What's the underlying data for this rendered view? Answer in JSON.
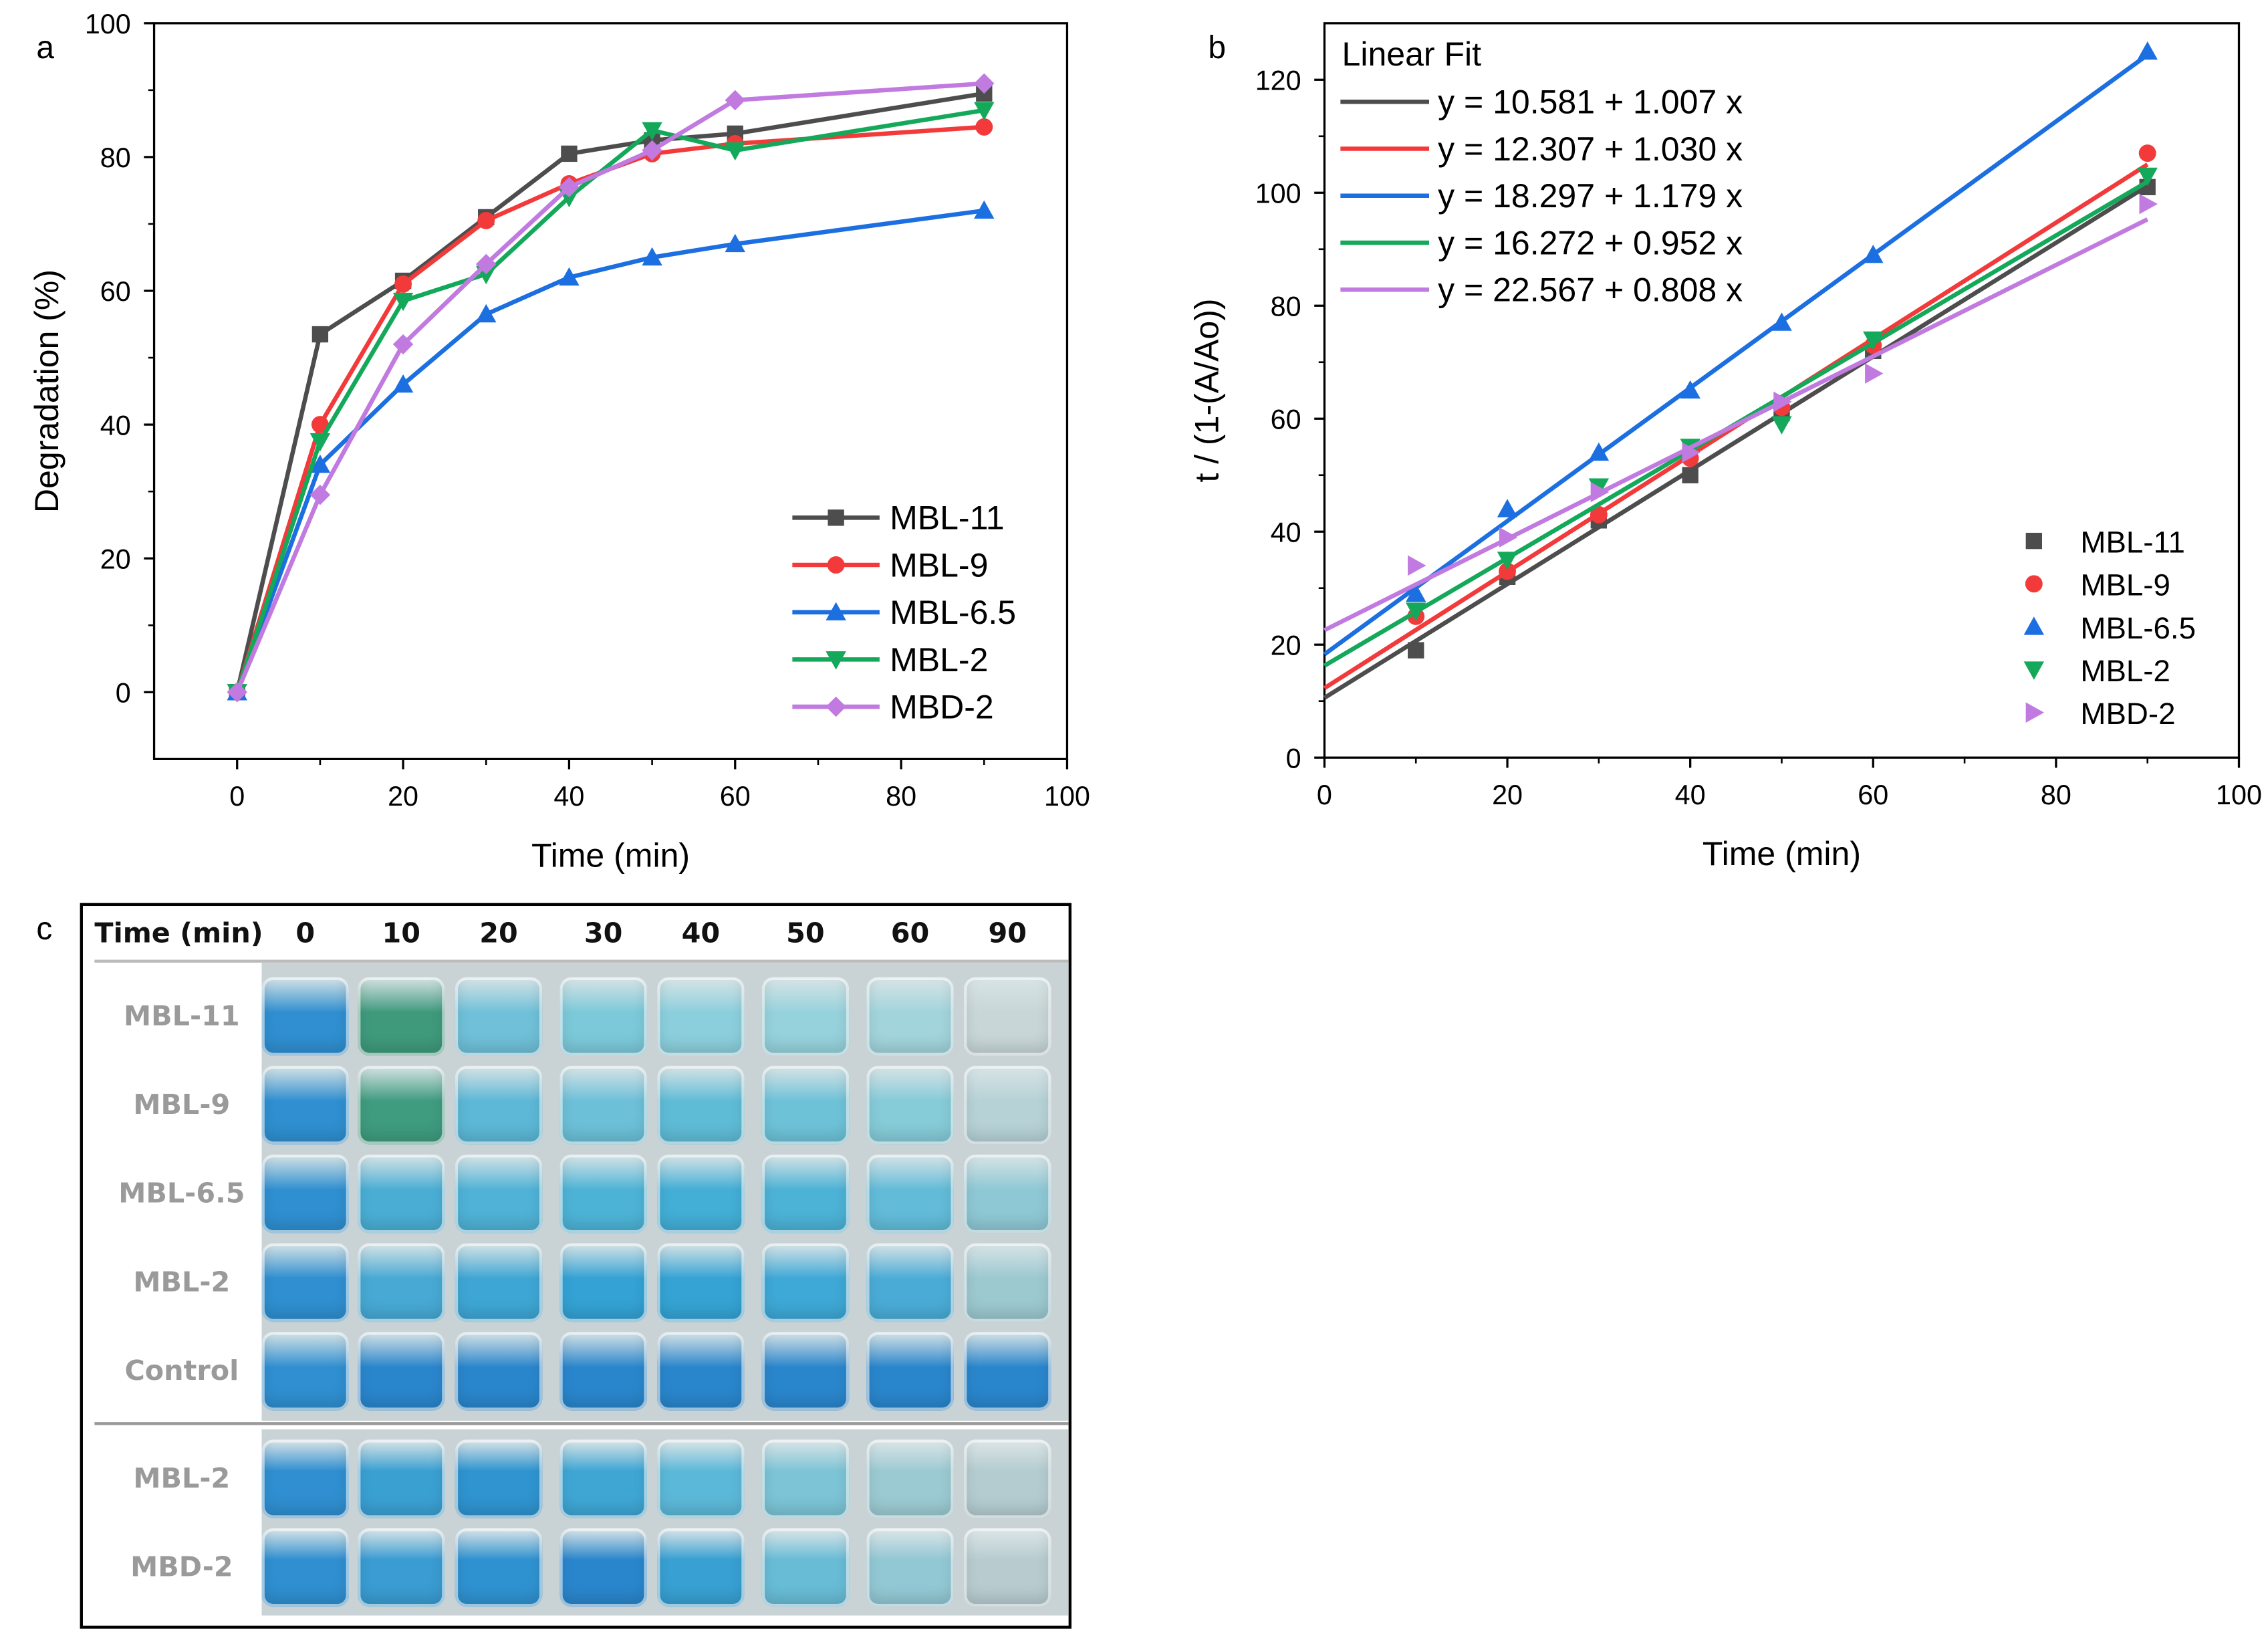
{
  "chart_data": [
    {
      "panel_label": "a",
      "type": "line",
      "xlabel": "Time (min)",
      "ylabel": "Degradation (%)",
      "xlim": [
        -10,
        100
      ],
      "ylim": [
        -10,
        100
      ],
      "xticks": [
        0,
        20,
        40,
        60,
        80,
        100
      ],
      "yticks": [
        0,
        20,
        40,
        60,
        80,
        100
      ],
      "legend_position": "bottom-right",
      "x": [
        0,
        10,
        20,
        30,
        40,
        50,
        60,
        90
      ],
      "series": [
        {
          "name": "MBL-11",
          "color": "#4d4d4d",
          "marker": "square",
          "values": [
            0,
            53.5,
            61.5,
            71,
            80.5,
            82.5,
            83.5,
            89.5
          ]
        },
        {
          "name": "MBL-9",
          "color": "#f23a3a",
          "marker": "circle",
          "values": [
            0,
            40,
            61,
            70.5,
            76,
            80.5,
            82,
            84.5
          ]
        },
        {
          "name": "MBL-6.5",
          "color": "#1c6fe0",
          "marker": "triangle-up",
          "values": [
            0,
            34,
            46,
            56.5,
            62,
            65,
            67,
            72
          ]
        },
        {
          "name": "MBL-2",
          "color": "#14a85a",
          "marker": "triangle-down",
          "values": [
            0,
            37.5,
            58.5,
            62.5,
            74,
            84,
            81,
            87
          ]
        },
        {
          "name": "MBD-2",
          "color": "#c07ae0",
          "marker": "diamond",
          "values": [
            0,
            29.5,
            52,
            64,
            75.5,
            81,
            88.5,
            91
          ]
        }
      ]
    },
    {
      "panel_label": "b",
      "type": "scatter",
      "xlabel": "Time (min)",
      "ylabel": "t / (1-(A/Ao))",
      "xlim": [
        0,
        100
      ],
      "ylim": [
        0,
        130
      ],
      "xticks": [
        0,
        20,
        40,
        60,
        80,
        100
      ],
      "yticks": [
        0,
        20,
        40,
        60,
        80,
        100,
        120
      ],
      "fit_title": "Linear Fit",
      "legend_position": "bottom-right",
      "x": [
        10,
        20,
        30,
        40,
        50,
        60,
        90
      ],
      "series": [
        {
          "name": "MBL-11",
          "color": "#4d4d4d",
          "marker": "square",
          "values": [
            19,
            32,
            42,
            50,
            61,
            72,
            101
          ],
          "fit": {
            "intercept": 10.581,
            "slope": 1.007,
            "label": "y = 10.581 + 1.007 x"
          }
        },
        {
          "name": "MBL-9",
          "color": "#f23a3a",
          "marker": "circle",
          "values": [
            25,
            33,
            43,
            53,
            62,
            73,
            107
          ],
          "fit": {
            "intercept": 12.307,
            "slope": 1.03,
            "label": "y = 12.307 + 1.030 x"
          }
        },
        {
          "name": "MBL-6.5",
          "color": "#1c6fe0",
          "marker": "triangle-up",
          "values": [
            29,
            44,
            54,
            65,
            77,
            89,
            125
          ],
          "fit": {
            "intercept": 18.297,
            "slope": 1.179,
            "label": "y = 18.297 + 1.179 x"
          }
        },
        {
          "name": "MBL-2",
          "color": "#14a85a",
          "marker": "triangle-down",
          "values": [
            26,
            35,
            48,
            55,
            59,
            74,
            103
          ],
          "fit": {
            "intercept": 16.272,
            "slope": 0.952,
            "label": "y = 16.272 + 0.952 x"
          }
        },
        {
          "name": "MBD-2",
          "color": "#c07ae0",
          "marker": "triangle-right",
          "values": [
            34,
            39,
            47,
            54,
            63,
            68,
            98
          ],
          "fit": {
            "intercept": 22.567,
            "slope": 0.808,
            "label": "y = 22.567 + 0.808 x"
          }
        }
      ]
    }
  ],
  "panel_c": {
    "label": "c",
    "header": "Time (min)",
    "times": [
      "0",
      "10",
      "20",
      "30",
      "40",
      "50",
      "60",
      "90"
    ],
    "rows_top": [
      "MBL-11",
      "MBL-9",
      "MBL-6.5",
      "MBL-2",
      "Control"
    ],
    "rows_bottom": [
      "MBL-2",
      "MBD-2"
    ],
    "cell_colors_top": [
      [
        "#2f8fd0",
        "#3f9a7c",
        "#6fc0d8",
        "#7cc9da",
        "#8ccfdc",
        "#96d2dc",
        "#a2d4dc",
        "#c8d6d8"
      ],
      [
        "#2f8fd0",
        "#3f9c7e",
        "#5cb8d6",
        "#6cc0d8",
        "#5fbcd6",
        "#6ec2d8",
        "#86cbd8",
        "#b6d2d6"
      ],
      [
        "#2f8fd0",
        "#4aaed4",
        "#4fb2d6",
        "#4db3d6",
        "#43aed6",
        "#4cb2d6",
        "#62bbd8",
        "#8ec8d4"
      ],
      [
        "#2f8fd0",
        "#47a9d4",
        "#3ea6d4",
        "#34a2d4",
        "#35a3d4",
        "#3ea8d6",
        "#4aacd6",
        "#9cc8d0"
      ],
      [
        "#2f8fd0",
        "#2a86cc",
        "#2a86cc",
        "#2a86cc",
        "#2a86cc",
        "#2a86cc",
        "#2a86cc",
        "#2a86cc"
      ]
    ],
    "cell_colors_bottom": [
      [
        "#2f8fd0",
        "#3aa0d2",
        "#2f94d0",
        "#3fa6d4",
        "#5cb8d8",
        "#7cc4d6",
        "#9ccad2",
        "#b4ccd0"
      ],
      [
        "#2f8fd0",
        "#3a9cd2",
        "#2f92d0",
        "#2a86cc",
        "#38a0d2",
        "#68bcd6",
        "#92c8d4",
        "#b8ccd0"
      ]
    ]
  }
}
